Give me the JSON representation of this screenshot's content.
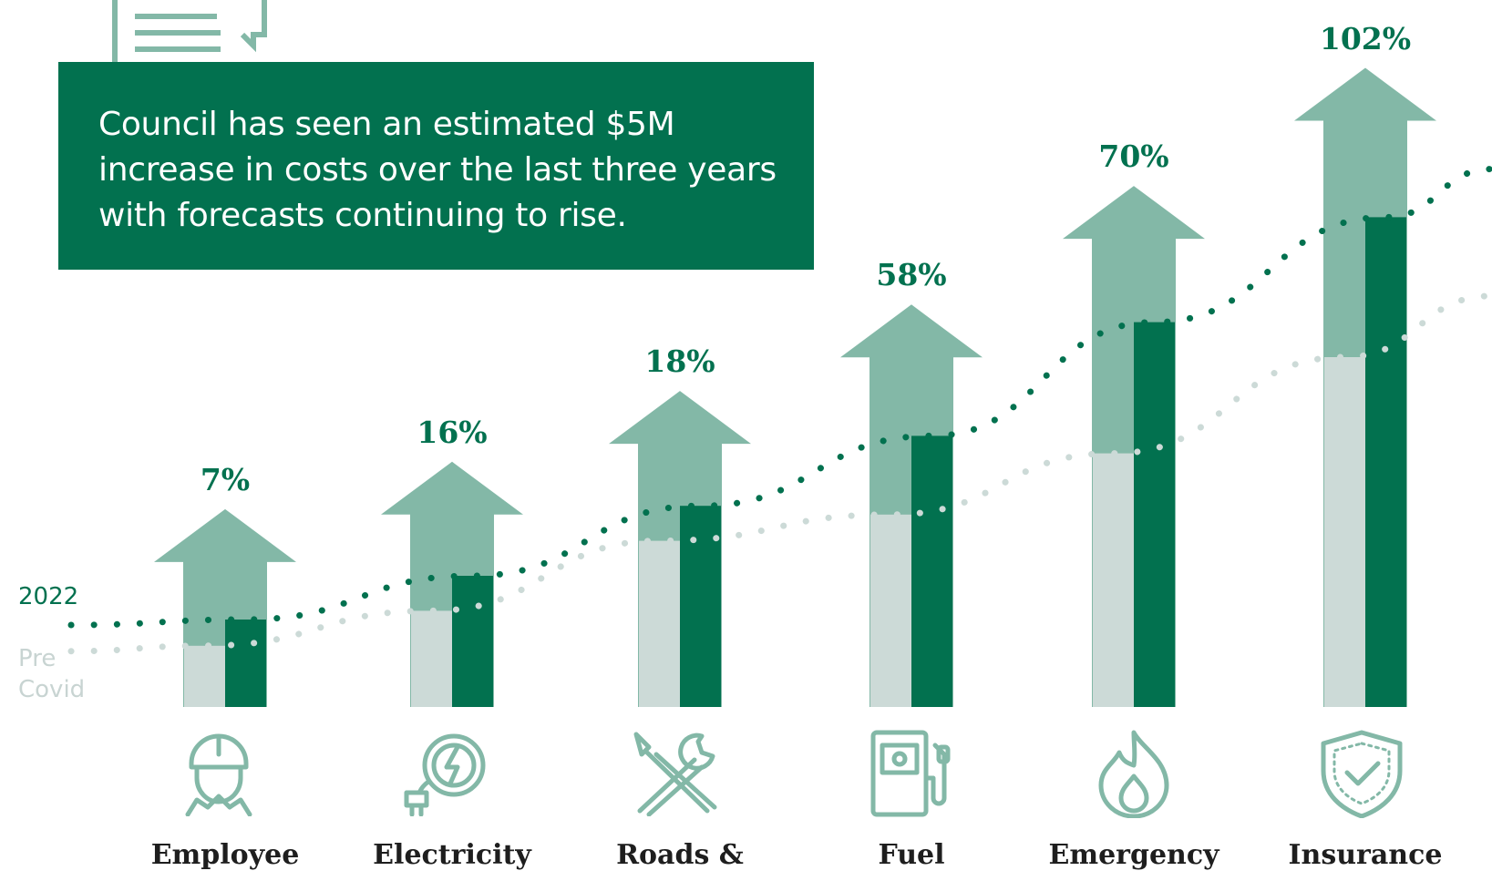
{
  "callout": {
    "text": "Council has seen an estimated $5M increase in costs over the last three years with forecasts continuing to rise."
  },
  "legend": {
    "current_label": "2022",
    "pre_label_line1": "Pre",
    "pre_label_line2": "Covid"
  },
  "colors": {
    "dark_green": "#02714f",
    "arrow_green": "#83b8a7",
    "pre_grey": "#ccdad7",
    "label_dark": "#1e1e1e"
  },
  "icons": [
    "hard-hat-worker-icon",
    "electric-plug-icon",
    "wrench-screwdriver-icon",
    "fuel-pump-icon",
    "flame-icon",
    "shield-check-icon"
  ],
  "chart_data": {
    "type": "bar",
    "categories": [
      "Employee",
      "Electricity",
      "Roads &",
      "Fuel",
      "Emergency",
      "Insurance"
    ],
    "increase_labels": [
      "7%",
      "16%",
      "18%",
      "58%",
      "70%",
      "102%"
    ],
    "increase_percent": [
      7,
      16,
      18,
      58,
      70,
      102
    ],
    "series": [
      {
        "name": "Pre Covid",
        "values": [
          7,
          11,
          19,
          22,
          29,
          40
        ]
      },
      {
        "name": "2022",
        "values": [
          10,
          15,
          23,
          31,
          44,
          56
        ]
      }
    ],
    "ylim": [
      0,
      70
    ]
  }
}
